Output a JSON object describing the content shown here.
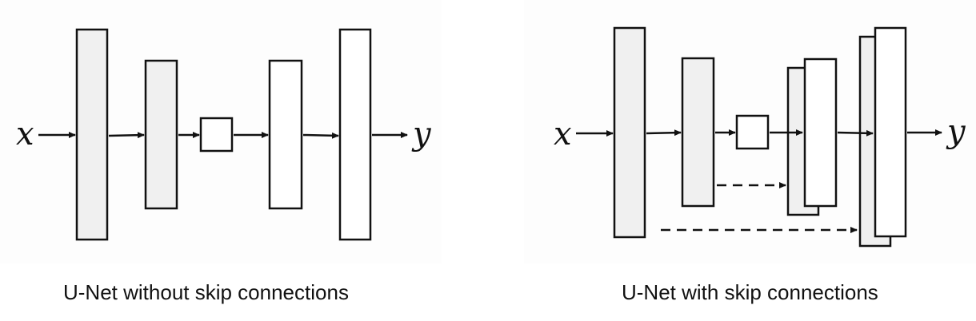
{
  "panels": {
    "left": {
      "caption": "U-Net without skip connections",
      "input_label": "x",
      "output_label": "y"
    },
    "right": {
      "caption": "U-Net with skip connections",
      "input_label": "x",
      "output_label": "y"
    }
  },
  "colors": {
    "encoder_fill": "#f0f0f0",
    "decoder_fill": "#ffffff",
    "stroke": "#111111"
  }
}
